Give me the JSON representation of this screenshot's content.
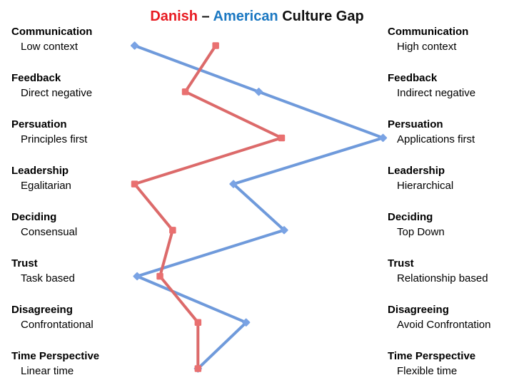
{
  "title": {
    "parts": [
      {
        "text": "Danish",
        "color": "#E81B22"
      },
      {
        "text": " – ",
        "color": "#111111"
      },
      {
        "text": "American",
        "color": "#1B78C2"
      },
      {
        "text": " Culture Gap",
        "color": "#111111"
      }
    ]
  },
  "chart_data": {
    "type": "line",
    "orientation": "vertical-categories",
    "title": "Danish – American Culture Gap",
    "categories": [
      "Communication",
      "Feedback",
      "Persuation",
      "Leadership",
      "Deciding",
      "Trust",
      "Disagreeing",
      "Time Perspective"
    ],
    "left_labels": [
      "Low context",
      "Direct negative",
      "Principles first",
      "Egalitarian",
      "Consensual",
      "Task based",
      "Confrontational",
      "Linear time"
    ],
    "right_labels": [
      "High context",
      "Indirect negative",
      "Applications first",
      "Hierarchical",
      "Top Down",
      "Relationship based",
      "Avoid Confrontation",
      "Flexible time"
    ],
    "xlim": [
      0,
      100
    ],
    "axis_visible": false,
    "grid": false,
    "legend_position": "in-title",
    "background": "#FFFFFF",
    "series": [
      {
        "name": "Danish",
        "marker": "square",
        "line_color": "#DC6A6A",
        "marker_color": "#E97070",
        "values": [
          33,
          21,
          59,
          1,
          16,
          11,
          26,
          26
        ]
      },
      {
        "name": "American",
        "marker": "diamond",
        "line_color": "#6F9ADB",
        "marker_color": "#7AA3E4",
        "values": [
          1,
          50,
          99,
          40,
          60,
          2,
          45,
          26
        ]
      }
    ]
  }
}
